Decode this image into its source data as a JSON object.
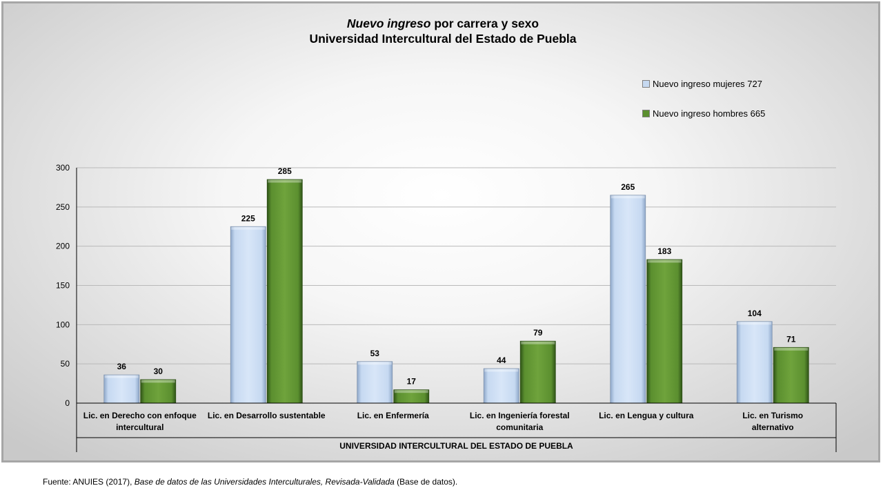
{
  "chart_data": {
    "type": "bar",
    "title_italic": "Nuevo ingreso",
    "title_rest": " por carrera y sexo",
    "subtitle": "Universidad Intercultural del Estado de Puebla",
    "categories": [
      [
        "Lic. en Derecho con enfoque",
        "intercultural"
      ],
      [
        "Lic. en Desarrollo sustentable"
      ],
      [
        "Lic. en Enfermería"
      ],
      [
        "Lic. en Ingeniería forestal",
        "comunitaria"
      ],
      [
        "Lic. en Lengua y cultura"
      ],
      [
        "Lic. en Turismo",
        "alternativo"
      ]
    ],
    "group_label": "UNIVERSIDAD INTERCULTURAL DEL ESTADO DE PUEBLA",
    "series": [
      {
        "name": "Nuevo ingreso mujeres  727",
        "color": "#c6d9f1",
        "values": [
          36,
          225,
          53,
          44,
          265,
          104
        ]
      },
      {
        "name": "Nuevo ingreso hombres 665",
        "color": "#5b8f2f",
        "values": [
          30,
          285,
          17,
          79,
          183,
          71
        ]
      }
    ],
    "ylim": [
      0,
      300
    ],
    "yticks": [
      0,
      50,
      100,
      150,
      200,
      250,
      300
    ],
    "grid": true,
    "legend_position": "top-right",
    "data_labels": true
  },
  "source": {
    "prefix": "Fuente: ANUIES (2017),  ",
    "title": "Base de datos de las Universidades  Interculturales, Revisada-Validada",
    "suffix": "  (Base de datos)."
  }
}
